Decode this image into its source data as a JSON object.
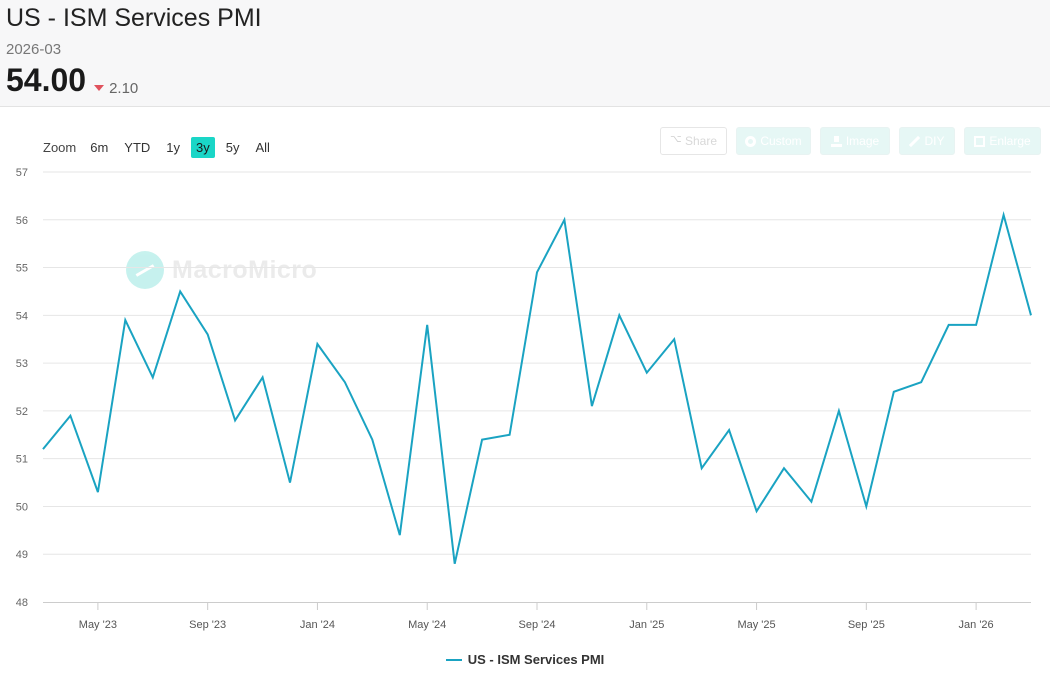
{
  "header": {
    "title": "US - ISM Services PMI",
    "date": "2026-03",
    "value": "54.00",
    "change": "2.10",
    "change_direction": "down"
  },
  "zoom": {
    "label": "Zoom",
    "options": [
      "6m",
      "YTD",
      "1y",
      "3y",
      "5y",
      "All"
    ],
    "active": "3y"
  },
  "toolbar": {
    "share": "Share",
    "custom": "Custom",
    "image": "Image",
    "diy": "DIY",
    "enlarge": "Enlarge"
  },
  "watermark": "MacroMicro",
  "colors": {
    "line": "#1aa3c2",
    "accent": "#1ad6c7",
    "down": "#e0525d"
  },
  "chart_data": {
    "type": "line",
    "ylim": [
      48,
      57
    ],
    "yticks": [
      48,
      49,
      50,
      51,
      52,
      53,
      54,
      55,
      56,
      57
    ],
    "xticks": [
      {
        "label": "May '23",
        "date": "2023-05"
      },
      {
        "label": "Sep '23",
        "date": "2023-09"
      },
      {
        "label": "Jan '24",
        "date": "2024-01"
      },
      {
        "label": "May '24",
        "date": "2024-05"
      },
      {
        "label": "Sep '24",
        "date": "2024-09"
      },
      {
        "label": "Jan '25",
        "date": "2025-01"
      },
      {
        "label": "May '25",
        "date": "2025-05"
      },
      {
        "label": "Sep '25",
        "date": "2025-09"
      },
      {
        "label": "Jan '26",
        "date": "2026-01"
      }
    ],
    "grid": true,
    "legend": "bottom-center",
    "series": [
      {
        "name": "US - ISM Services PMI",
        "x": [
          "2023-03",
          "2023-04",
          "2023-05",
          "2023-06",
          "2023-07",
          "2023-08",
          "2023-09",
          "2023-10",
          "2023-11",
          "2023-12",
          "2024-01",
          "2024-02",
          "2024-03",
          "2024-04",
          "2024-05",
          "2024-06",
          "2024-07",
          "2024-08",
          "2024-09",
          "2024-10",
          "2024-11",
          "2024-12",
          "2025-01",
          "2025-02",
          "2025-03",
          "2025-04",
          "2025-05",
          "2025-06",
          "2025-07",
          "2025-08",
          "2025-09",
          "2025-10",
          "2025-11",
          "2025-12",
          "2026-01",
          "2026-02",
          "2026-03"
        ],
        "values": [
          51.2,
          51.9,
          50.3,
          53.9,
          52.7,
          54.5,
          53.6,
          51.8,
          52.7,
          50.5,
          53.4,
          52.6,
          51.4,
          49.4,
          53.8,
          48.8,
          51.4,
          51.5,
          54.9,
          56.0,
          52.1,
          54.0,
          52.8,
          53.5,
          50.8,
          51.6,
          49.9,
          50.8,
          50.1,
          52.0,
          50.0,
          52.4,
          52.6,
          53.8,
          53.8,
          56.1,
          54.0
        ]
      }
    ]
  }
}
